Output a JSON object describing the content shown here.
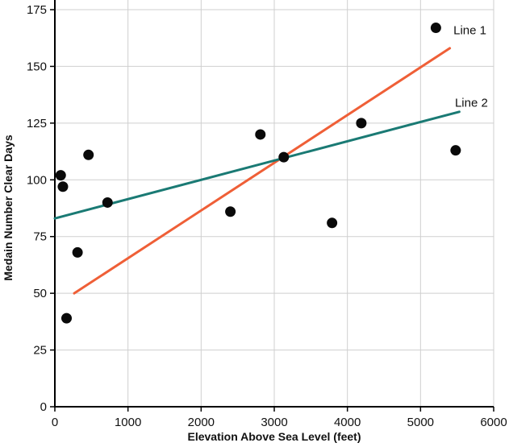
{
  "chart_data": {
    "type": "scatter",
    "title": "",
    "xlabel": "Elevation Above Sea Level (feet)",
    "ylabel": "Medain Number Clear Days",
    "xlim": [
      0,
      6000
    ],
    "ylim": [
      0,
      175
    ],
    "x_ticks": [
      0,
      1000,
      2000,
      3000,
      4000,
      5000,
      6000
    ],
    "y_ticks": [
      0,
      25,
      50,
      75,
      100,
      125,
      150,
      175
    ],
    "grid": true,
    "grid_color": "#cfcfcf",
    "axis_color": "#000000",
    "point_color": "#0a0a0a",
    "points": [
      [
        80,
        102
      ],
      [
        110,
        97
      ],
      [
        160,
        39
      ],
      [
        310,
        68
      ],
      [
        460,
        111
      ],
      [
        720,
        90
      ],
      [
        2400,
        86
      ],
      [
        2810,
        120
      ],
      [
        3130,
        110
      ],
      [
        3790,
        81
      ],
      [
        4190,
        125
      ],
      [
        5210,
        167
      ],
      [
        5480,
        113
      ]
    ],
    "lines": [
      {
        "label": "Line 1",
        "color": "#ef5f37",
        "x1": 265,
        "y1": 50,
        "x2": 5400,
        "y2": 158,
        "label_x": 5450,
        "label_y": 166
      },
      {
        "label": "Line 2",
        "color": "#1a7a74",
        "x1": 0,
        "y1": 83,
        "x2": 5530,
        "y2": 130,
        "label_x": 5470,
        "label_y": 134
      }
    ],
    "legend_position": "none"
  }
}
